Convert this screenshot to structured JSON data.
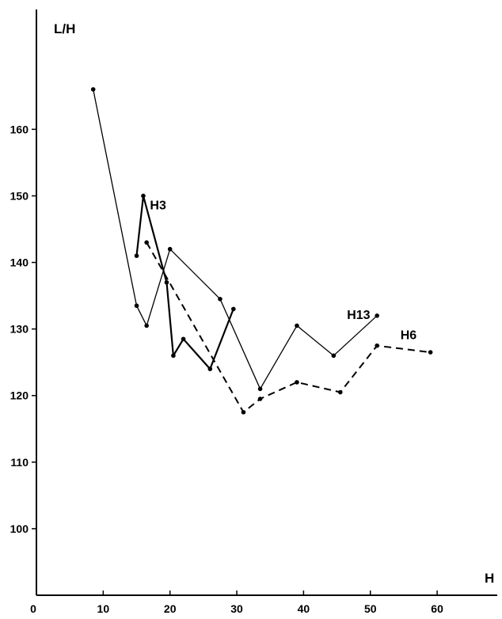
{
  "chart_data": {
    "type": "line",
    "title": "",
    "xlabel": "H",
    "ylabel": "L/H",
    "xlim": [
      0,
      69
    ],
    "ylim": [
      90,
      178
    ],
    "x_ticks": [
      0,
      10,
      20,
      30,
      40,
      50,
      60
    ],
    "y_ticks": [
      100,
      110,
      120,
      130,
      140,
      150,
      160
    ],
    "grid": false,
    "legend": "none",
    "series": [
      {
        "name": "H13",
        "style": "solid-thin",
        "color": "#000000",
        "points": [
          [
            8.5,
            166
          ],
          [
            15,
            133.5
          ],
          [
            16.5,
            130.5
          ],
          [
            20,
            142
          ],
          [
            27.5,
            134.5
          ],
          [
            33.5,
            121
          ],
          [
            39,
            130.5
          ],
          [
            44.5,
            126
          ],
          [
            51,
            132
          ]
        ]
      },
      {
        "name": "H3",
        "style": "solid-thick",
        "color": "#000000",
        "points": [
          [
            15,
            141
          ],
          [
            16,
            150
          ],
          [
            19.5,
            137
          ],
          [
            20.5,
            126
          ],
          [
            22,
            128.5
          ],
          [
            26,
            124
          ],
          [
            29.5,
            133
          ]
        ]
      },
      {
        "name": "H6",
        "style": "dashed",
        "color": "#000000",
        "points": [
          [
            16.5,
            143
          ],
          [
            31,
            117.5
          ],
          [
            33.5,
            119.5
          ],
          [
            39,
            122
          ],
          [
            45.5,
            120.5
          ],
          [
            51,
            127.5
          ],
          [
            59,
            126.5
          ]
        ]
      }
    ],
    "annotations": [
      {
        "text": "H3",
        "x": 17,
        "y": 148
      },
      {
        "text": "H13",
        "x": 46.5,
        "y": 131.5
      },
      {
        "text": "H6",
        "x": 54.5,
        "y": 128.5
      }
    ]
  }
}
